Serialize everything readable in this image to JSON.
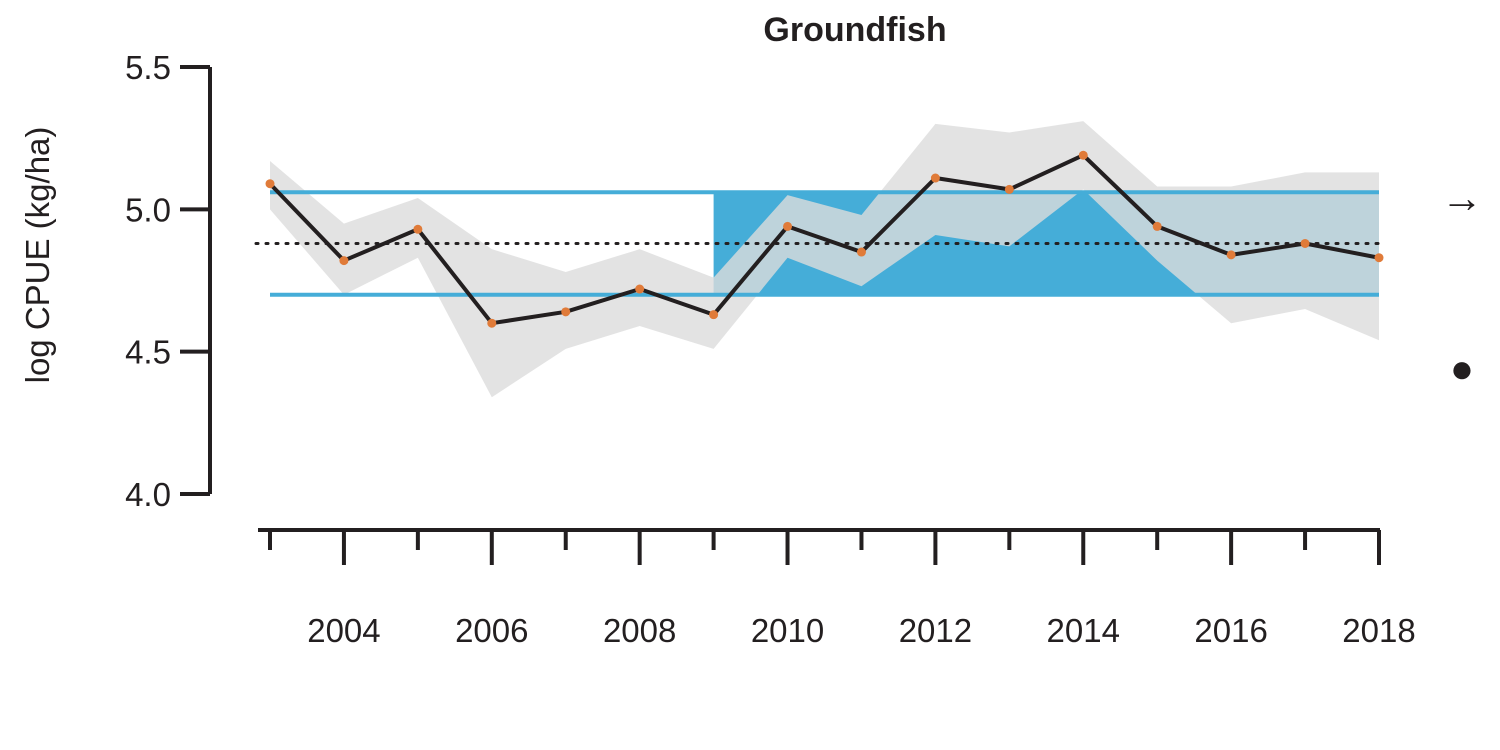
{
  "chart_data": {
    "type": "line",
    "title": "Groundfish",
    "xlabel": "",
    "ylabel": "log CPUE (kg/ha)",
    "x": [
      2003,
      2004,
      2005,
      2006,
      2007,
      2008,
      2009,
      2010,
      2011,
      2012,
      2013,
      2014,
      2015,
      2016,
      2017,
      2018
    ],
    "series": [
      {
        "values": [
          5.09,
          4.82,
          4.93,
          4.6,
          4.64,
          4.72,
          4.63,
          4.94,
          4.85,
          5.11,
          5.07,
          5.19,
          4.94,
          4.84,
          4.88,
          4.83
        ]
      }
    ],
    "ci_upper": [
      5.17,
      4.95,
      5.04,
      4.86,
      4.78,
      4.86,
      4.76,
      5.05,
      4.98,
      5.3,
      5.27,
      5.31,
      5.08,
      5.08,
      5.13,
      5.13
    ],
    "ci_lower": [
      5.0,
      4.7,
      4.83,
      4.34,
      4.51,
      4.59,
      4.51,
      4.83,
      4.73,
      4.91,
      4.87,
      5.07,
      4.82,
      4.6,
      4.65,
      4.54
    ],
    "mean": 4.88,
    "band_upper": 5.06,
    "band_lower": 4.7,
    "highlight_start": 2009,
    "ylim": [
      4.0,
      5.5
    ],
    "yticks": [
      "4.0",
      "4.5",
      "5.0",
      "5.5"
    ],
    "xticks_labeled": [
      "2004",
      "2006",
      "2008",
      "2010",
      "2012",
      "2014",
      "2016",
      "2018"
    ],
    "xlim": [
      2003,
      2018
    ],
    "trend_symbol": "→",
    "status_symbol": "●",
    "colors": {
      "line": "#231f20",
      "points": "#e07b39",
      "ci": "#dcdcdc",
      "band": "#45add8",
      "mean": "#231f20",
      "overlap": "#bccbd5"
    },
    "grid": false
  }
}
